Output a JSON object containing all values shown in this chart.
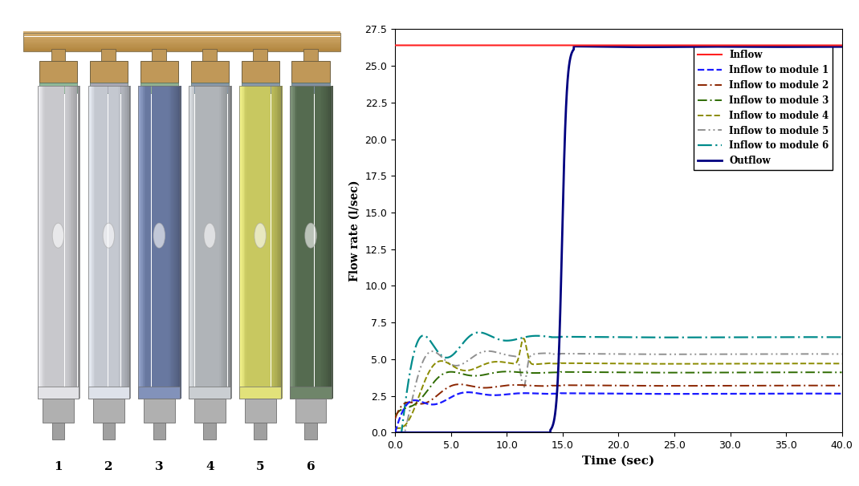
{
  "title": "",
  "xlabel": "Time (sec)",
  "ylabel": "Flow rate (l/sec)",
  "xlim": [
    0,
    40
  ],
  "ylim": [
    0,
    27.5
  ],
  "yticks": [
    0.0,
    2.5,
    5.0,
    7.5,
    10.0,
    12.5,
    15.0,
    17.5,
    20.0,
    22.5,
    25.0,
    27.5
  ],
  "xticks": [
    0.0,
    5.0,
    10.0,
    15.0,
    20.0,
    25.0,
    30.0,
    35.0,
    40.0
  ],
  "inflow_value": 26.4,
  "outflow_final": 26.3,
  "module_steady": [
    2.65,
    3.2,
    4.1,
    4.7,
    5.35,
    6.5
  ],
  "module_colors": [
    "#1a1aff",
    "#8B2500",
    "#2E6B00",
    "#8B8B00",
    "#909090",
    "#008B8B"
  ],
  "legend_labels": [
    "Inflow",
    "Inflow to module 1",
    "Inflow to module 2",
    "Inflow to module 3",
    "Inflow to module 4",
    "Inflow to module 5",
    "Inflow to module 6",
    "Outflow"
  ],
  "mod_body_colors": [
    "#C0C0C8",
    "#C0C4CC",
    "#6A7F9A",
    "#B0B4B8",
    "#C8C870",
    "#5A7050"
  ],
  "mod_top_colors": [
    "#8FBB9F",
    "#B0B0BB",
    "#8FBB9F",
    "#8FBB9F",
    "#8090A0",
    "#9090A0"
  ],
  "bar_color": "#C8A060",
  "bar_edge_color": "#A07840",
  "connector_color": "#C8A060"
}
